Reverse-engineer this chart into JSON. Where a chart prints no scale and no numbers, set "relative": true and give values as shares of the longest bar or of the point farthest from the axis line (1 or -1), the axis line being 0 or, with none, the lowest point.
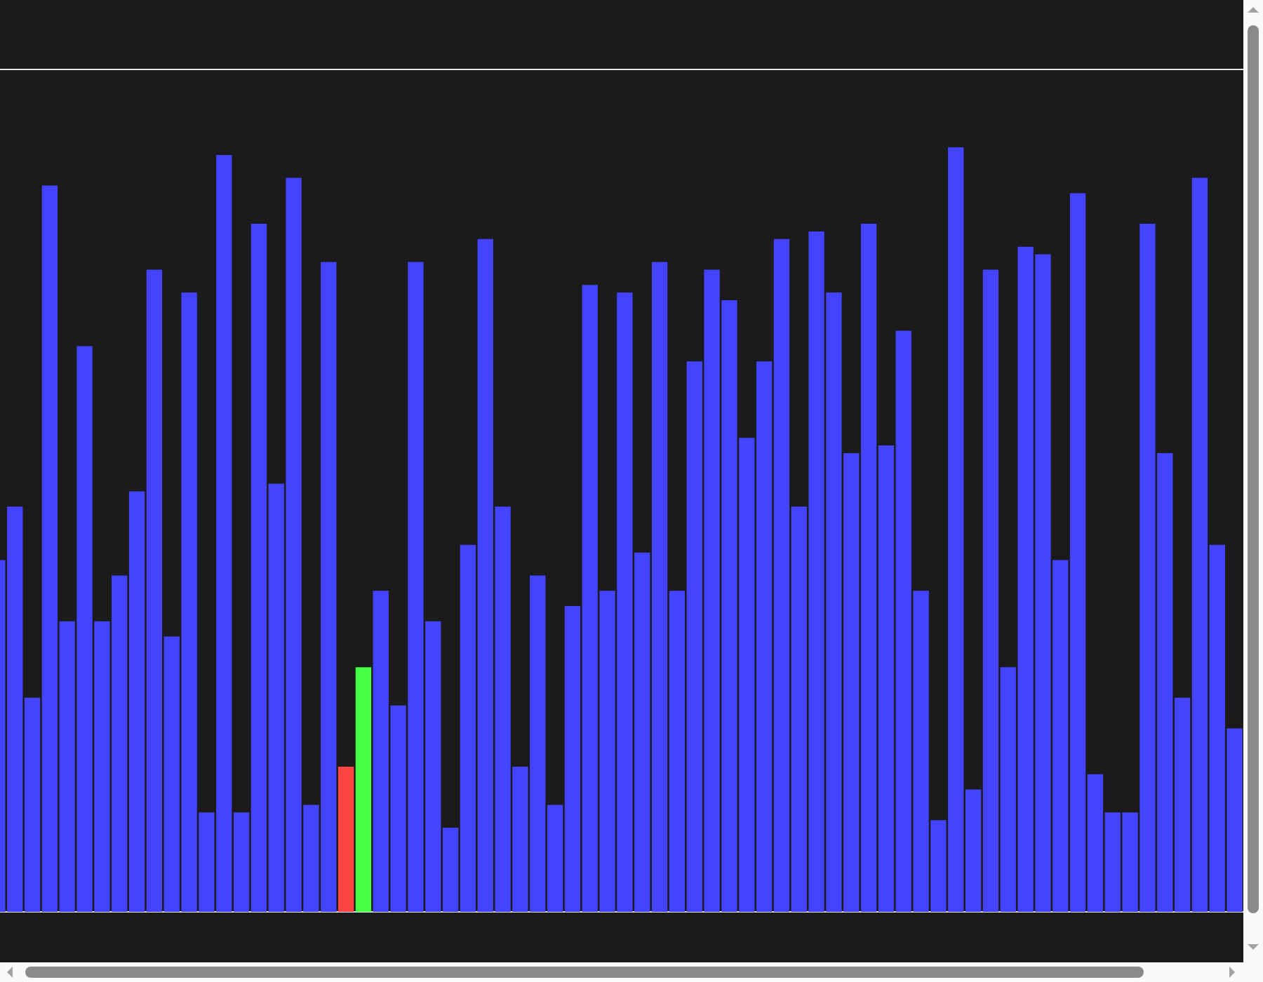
{
  "chart_data": {
    "type": "bar",
    "relative": true,
    "categories": [
      null,
      null,
      null,
      null,
      null,
      null,
      null,
      null,
      null,
      null,
      null,
      null,
      null,
      null,
      null,
      null,
      null,
      null,
      null,
      null,
      null,
      null,
      null,
      null,
      null,
      null,
      null,
      null,
      null,
      null,
      null,
      null,
      null,
      null,
      null,
      null,
      null,
      null,
      null,
      null,
      null,
      null,
      null,
      null,
      null,
      null,
      null,
      null,
      null,
      null,
      null,
      null,
      null,
      null,
      null,
      null,
      null,
      null,
      null,
      null,
      null,
      null,
      null,
      null,
      null,
      null,
      null,
      null,
      null,
      null,
      null,
      null
    ],
    "values": [
      0.46,
      0.53,
      0.28,
      0.95,
      0.38,
      0.74,
      0.38,
      0.44,
      0.55,
      0.84,
      0.36,
      0.81,
      0.13,
      0.99,
      0.13,
      0.9,
      0.56,
      0.96,
      0.14,
      0.85,
      0.19,
      0.32,
      0.42,
      0.27,
      0.85,
      0.38,
      0.11,
      0.48,
      0.88,
      0.53,
      0.19,
      0.44,
      0.14,
      0.4,
      0.82,
      0.42,
      0.81,
      0.47,
      0.85,
      0.42,
      0.72,
      0.84,
      0.8,
      0.62,
      0.72,
      0.88,
      0.53,
      0.89,
      0.81,
      0.6,
      0.9,
      0.61,
      0.76,
      0.42,
      0.12,
      1,
      0.16,
      0.84,
      0.32,
      0.87,
      0.86,
      0.46,
      0.94,
      0.18,
      0.13,
      0.13,
      0.9,
      0.6,
      0.28,
      0.96,
      0.48,
      0.24
    ],
    "colors": [
      "#4444ff",
      "#4444ff",
      "#4444ff",
      "#4444ff",
      "#4444ff",
      "#4444ff",
      "#4444ff",
      "#4444ff",
      "#4444ff",
      "#4444ff",
      "#4444ff",
      "#4444ff",
      "#4444ff",
      "#4444ff",
      "#4444ff",
      "#4444ff",
      "#4444ff",
      "#4444ff",
      "#4444ff",
      "#4444ff",
      "#ff4444",
      "#44ff44",
      "#4444ff",
      "#4444ff",
      "#4444ff",
      "#4444ff",
      "#4444ff",
      "#4444ff",
      "#4444ff",
      "#4444ff",
      "#4444ff",
      "#4444ff",
      "#4444ff",
      "#4444ff",
      "#4444ff",
      "#4444ff",
      "#4444ff",
      "#4444ff",
      "#4444ff",
      "#4444ff",
      "#4444ff",
      "#4444ff",
      "#4444ff",
      "#4444ff",
      "#4444ff",
      "#4444ff",
      "#4444ff",
      "#4444ff",
      "#4444ff",
      "#4444ff",
      "#4444ff",
      "#4444ff",
      "#4444ff",
      "#4444ff",
      "#4444ff",
      "#4444ff",
      "#4444ff",
      "#4444ff",
      "#4444ff",
      "#4444ff",
      "#4444ff",
      "#4444ff",
      "#4444ff",
      "#4444ff",
      "#4444ff",
      "#4444ff",
      "#4444ff",
      "#4444ff",
      "#4444ff",
      "#4444ff",
      "#4444ff",
      "#4444ff"
    ]
  }
}
